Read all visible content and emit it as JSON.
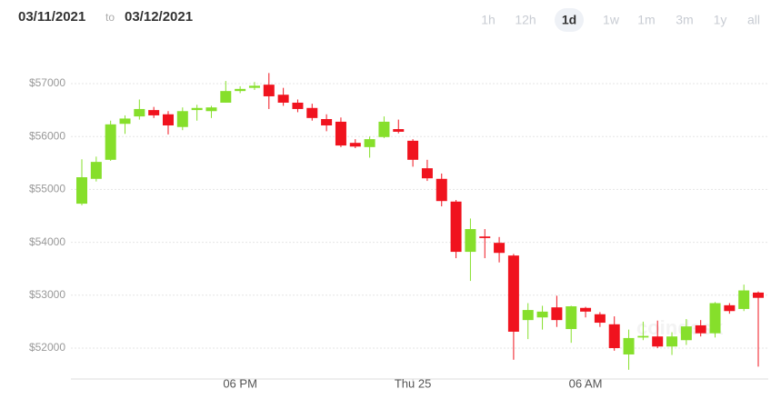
{
  "header": {
    "from": "03/11/2021",
    "to_word": "to",
    "to": "03/12/2021"
  },
  "timeframes": [
    "1h",
    "12h",
    "1d",
    "1w",
    "1m",
    "3m",
    "1y",
    "all"
  ],
  "selected_timeframe": 2,
  "watermark": "coindesk",
  "chart_data": {
    "type": "candlestick",
    "categories": [
      null,
      null,
      null,
      null,
      null,
      null,
      null,
      null,
      null,
      null,
      null,
      "06 PM",
      null,
      null,
      null,
      null,
      null,
      null,
      null,
      null,
      null,
      null,
      null,
      "Thu 25",
      null,
      null,
      null,
      null,
      null,
      null,
      null,
      null,
      null,
      null,
      null,
      "06 AM",
      null,
      null,
      null,
      null,
      null,
      null,
      null,
      null,
      null,
      null,
      null,
      null
    ],
    "open": [
      54730,
      55200,
      55560,
      56240,
      56380,
      56500,
      56420,
      56180,
      56500,
      56480,
      56640,
      56860,
      56920,
      56980,
      56790,
      56640,
      56540,
      56330,
      56280,
      55880,
      55800,
      55990,
      56140,
      55920,
      55400,
      55200,
      54770,
      53820,
      54110,
      53990,
      53750,
      52530,
      52580,
      52770,
      52360,
      52760,
      52640,
      52450,
      51880,
      52200,
      52220,
      52030,
      52150,
      52430,
      52280,
      52810,
      52740,
      53050
    ],
    "high": [
      55570,
      55620,
      56300,
      56400,
      56700,
      56560,
      56480,
      56550,
      56600,
      56580,
      57050,
      56950,
      57030,
      57200,
      56920,
      56700,
      56620,
      56420,
      56360,
      55950,
      56000,
      56380,
      56320,
      55950,
      55560,
      55300,
      54800,
      54450,
      54250,
      54100,
      53780,
      52850,
      52800,
      52990,
      52800,
      52780,
      52680,
      52600,
      52350,
      52500,
      52520,
      52300,
      52550,
      52530,
      52870,
      52850,
      53200,
      53070
    ],
    "low": [
      54700,
      55150,
      55540,
      56050,
      56320,
      56350,
      56040,
      56120,
      56300,
      56350,
      56640,
      56820,
      56880,
      56520,
      56580,
      56460,
      56300,
      56100,
      55800,
      55780,
      55600,
      55970,
      56060,
      55430,
      55160,
      54680,
      53700,
      53270,
      53700,
      53620,
      51780,
      52170,
      52350,
      52400,
      52100,
      52580,
      52400,
      51950,
      51590,
      52150,
      52000,
      51870,
      52060,
      52220,
      52200,
      52650,
      52700,
      51650
    ],
    "close": [
      55230,
      55520,
      56230,
      56340,
      56520,
      56400,
      56210,
      56480,
      56540,
      56550,
      56860,
      56900,
      56960,
      56760,
      56640,
      56520,
      56350,
      56210,
      55830,
      55810,
      55950,
      56280,
      56090,
      55560,
      55210,
      54780,
      53820,
      54250,
      54080,
      53800,
      52310,
      52720,
      52690,
      52530,
      52790,
      52690,
      52480,
      52000,
      52190,
      52230,
      52030,
      52220,
      52410,
      52280,
      52850,
      52700,
      53090,
      52950
    ],
    "up_color": "#86df2b",
    "down_color": "#f0131e",
    "ylim": [
      51450,
      57550
    ],
    "yticks": [
      {
        "value": 52000,
        "label": "$52000"
      },
      {
        "value": 53000,
        "label": "$53000"
      },
      {
        "value": 54000,
        "label": "$54000"
      },
      {
        "value": 55000,
        "label": "$55000"
      },
      {
        "value": 56000,
        "label": "$56000"
      },
      {
        "value": 57000,
        "label": "$57000"
      }
    ],
    "grid": true
  }
}
